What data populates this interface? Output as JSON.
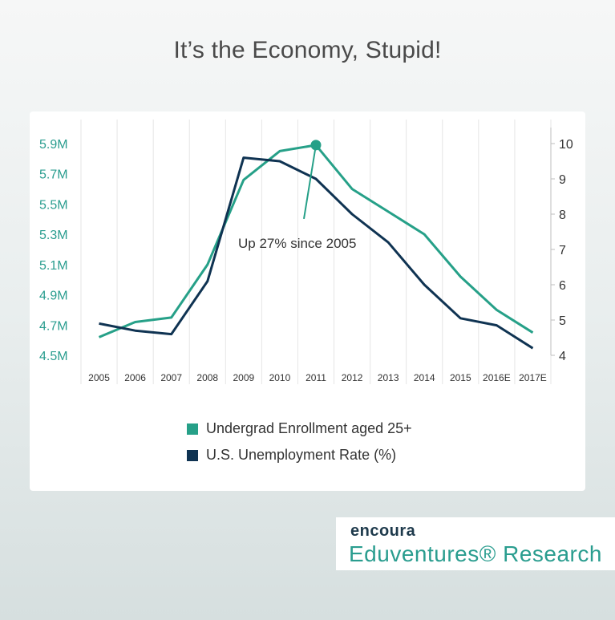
{
  "title": "It’s the Economy, Stupid!",
  "colors": {
    "enrollment": "#26a088",
    "unemployment": "#0f3352",
    "left_axis": "#2a9d8f",
    "right_axis": "#333333",
    "grid": "#e6e6e6"
  },
  "chart_data": {
    "type": "line",
    "categories": [
      "2005",
      "2006",
      "2007",
      "2008",
      "2009",
      "2010",
      "2011",
      "2012",
      "2013",
      "2014",
      "2015",
      "2016E",
      "2017E"
    ],
    "series": [
      {
        "name": "Undergrad Enrollment aged 25+",
        "axis": "left",
        "values": [
          4.62,
          4.72,
          4.75,
          5.1,
          5.66,
          5.85,
          5.89,
          5.6,
          5.45,
          5.3,
          5.02,
          4.8,
          4.65
        ]
      },
      {
        "name": "U.S. Unemployment Rate (%)",
        "axis": "right",
        "values": [
          4.9,
          4.7,
          4.6,
          6.1,
          9.6,
          9.5,
          9.0,
          8.0,
          7.2,
          6.0,
          5.05,
          4.85,
          4.2
        ]
      }
    ],
    "left_axis": {
      "ylim": [
        4.5,
        5.9
      ],
      "ticks": [
        4.5,
        4.7,
        4.9,
        5.1,
        5.3,
        5.5,
        5.7,
        5.9
      ],
      "tick_labels": [
        "4.5M",
        "4.7M",
        "4.9M",
        "5.1M",
        "5.3M",
        "5.5M",
        "5.7M",
        "5.9M"
      ]
    },
    "right_axis": {
      "ylim": [
        4,
        10
      ],
      "ticks": [
        4,
        5,
        6,
        7,
        8,
        9,
        10
      ],
      "tick_labels": [
        "4",
        "5",
        "6",
        "7",
        "8",
        "9",
        "10"
      ]
    },
    "grid": "vertical",
    "annotation": {
      "text": "Up 27% since 2005",
      "category": "2011",
      "series": 0
    },
    "legend": {
      "position": "bottom"
    }
  },
  "brand": {
    "company": "encoura",
    "division": "Eduventures® Research"
  }
}
